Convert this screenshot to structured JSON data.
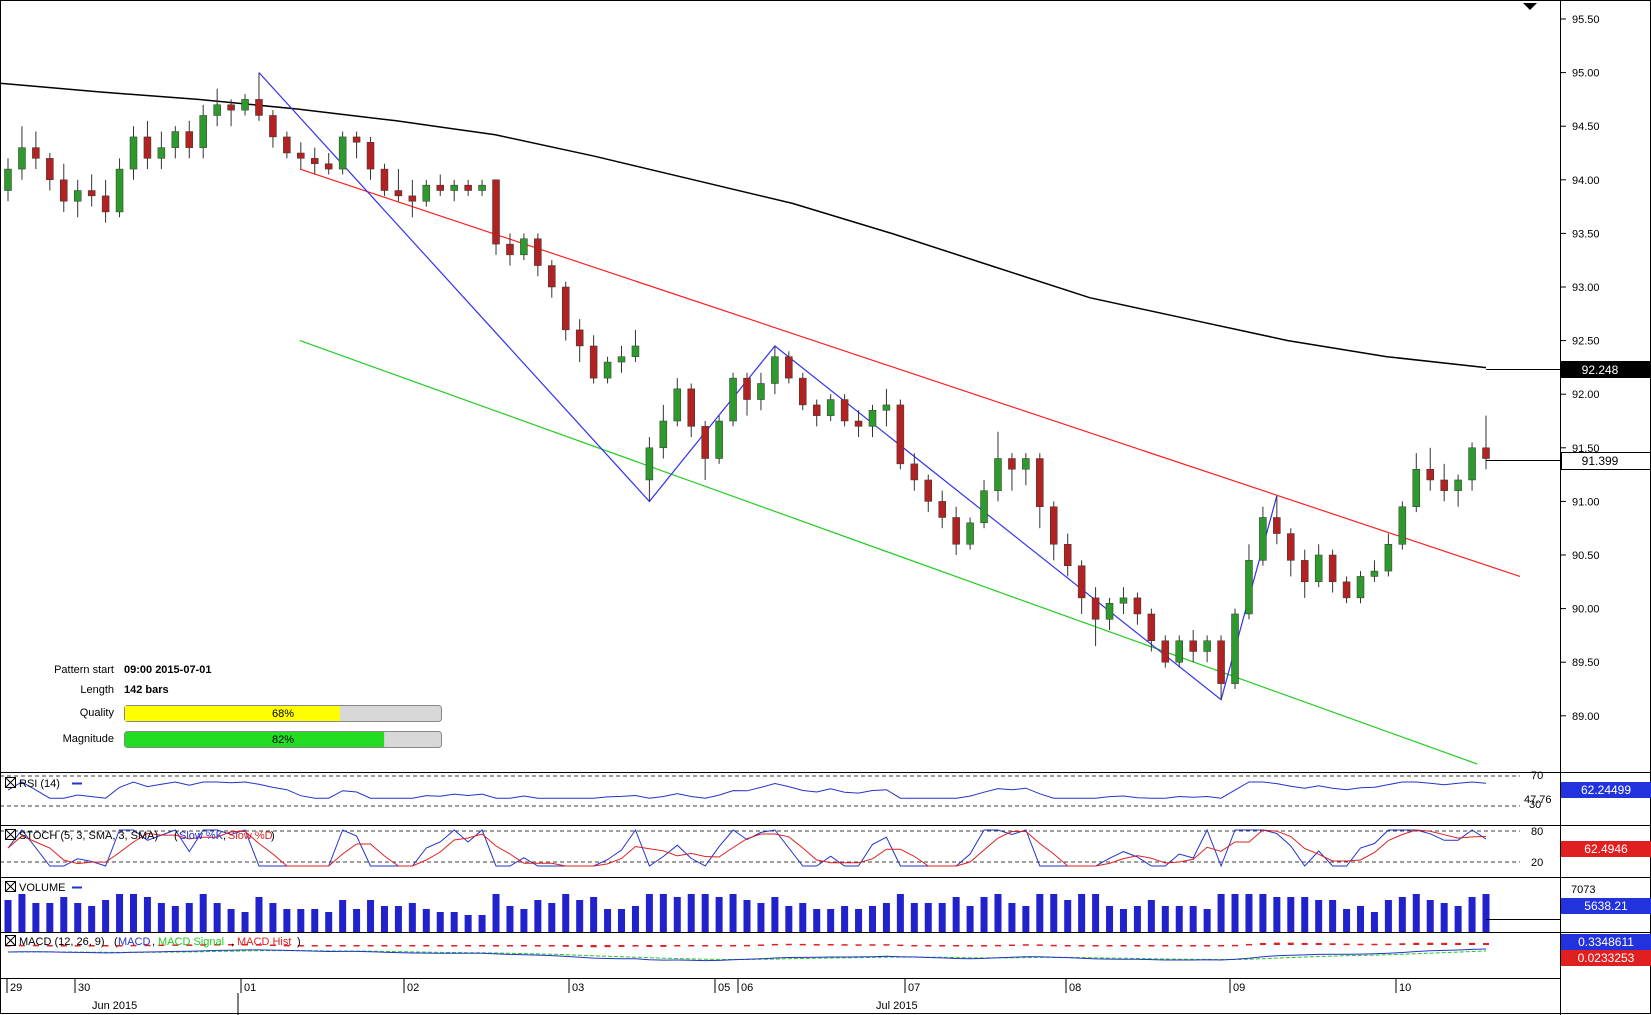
{
  "chart_data": {
    "type": "candlestick",
    "instrument_note": "",
    "price_axis": {
      "ticks": [
        95.5,
        95.0,
        94.5,
        94.0,
        93.5,
        93.0,
        92.5,
        92.0,
        91.5,
        91.0,
        90.5,
        90.0,
        89.5,
        89.0
      ],
      "tick_labels": [
        "95.50",
        "95.00",
        "94.50",
        "94.00",
        "93.50",
        "93.00",
        "92.50",
        "92.00",
        "91.50",
        "91.00",
        "90.50",
        "90.00",
        "89.50",
        "89.00"
      ],
      "ylim": [
        88.4,
        95.6
      ]
    },
    "time_axis": {
      "day_labels": [
        "29",
        "30",
        "01",
        "02",
        "03",
        "05",
        "06",
        "07",
        "08",
        "09",
        "10"
      ],
      "month_labels": [
        "Jun 2015",
        "Jul 2015"
      ]
    },
    "moving_average": {
      "label": "92.248",
      "value": 92.248,
      "points": [
        94.9,
        94.82,
        94.75,
        94.66,
        94.55,
        94.42,
        94.22,
        94.0,
        93.78,
        93.5,
        93.2,
        92.9,
        92.7,
        92.5,
        92.35,
        92.248
      ]
    },
    "last_price": {
      "label": "91.399",
      "value": 91.399
    },
    "pattern": {
      "type": "descending channel",
      "start_label": "Pattern start",
      "start_value": "09:00 2015-07-01",
      "length_label": "Length",
      "length_value": "142 bars",
      "quality_label": "Quality",
      "quality_value": "68%",
      "quality": 0.68,
      "magnitude_label": "Magnitude",
      "magnitude_value": "82%",
      "magnitude": 0.82,
      "resistance_line": [
        [
          0.0,
          94.1
        ],
        [
          1.0,
          90.3
        ]
      ],
      "support_line": [
        [
          0.0,
          92.5
        ],
        [
          0.965,
          88.55
        ]
      ],
      "zigzag": [
        95.0,
        91.0,
        92.45,
        89.15,
        91.05
      ]
    },
    "candles_ohlc": [
      [
        93.9,
        94.2,
        93.8,
        94.1
      ],
      [
        94.1,
        94.5,
        94.0,
        94.3
      ],
      [
        94.3,
        94.45,
        94.1,
        94.2
      ],
      [
        94.2,
        94.25,
        93.9,
        94.0
      ],
      [
        94.0,
        94.15,
        93.7,
        93.8
      ],
      [
        93.8,
        94.0,
        93.65,
        93.9
      ],
      [
        93.9,
        94.05,
        93.75,
        93.85
      ],
      [
        93.85,
        94.0,
        93.6,
        93.7
      ],
      [
        93.7,
        94.2,
        93.65,
        94.1
      ],
      [
        94.1,
        94.5,
        94.0,
        94.4
      ],
      [
        94.4,
        94.55,
        94.1,
        94.2
      ],
      [
        94.2,
        94.45,
        94.1,
        94.3
      ],
      [
        94.3,
        94.5,
        94.2,
        94.45
      ],
      [
        94.45,
        94.55,
        94.2,
        94.3
      ],
      [
        94.3,
        94.7,
        94.2,
        94.6
      ],
      [
        94.6,
        94.85,
        94.5,
        94.7
      ],
      [
        94.7,
        94.75,
        94.5,
        94.65
      ],
      [
        94.65,
        94.8,
        94.6,
        94.75
      ],
      [
        94.75,
        95.0,
        94.55,
        94.6
      ],
      [
        94.6,
        94.65,
        94.3,
        94.4
      ],
      [
        94.4,
        94.45,
        94.2,
        94.25
      ],
      [
        94.25,
        94.35,
        94.1,
        94.2
      ],
      [
        94.2,
        94.3,
        94.05,
        94.15
      ],
      [
        94.15,
        94.25,
        94.05,
        94.1
      ],
      [
        94.1,
        94.45,
        94.05,
        94.4
      ],
      [
        94.4,
        94.45,
        94.2,
        94.35
      ],
      [
        94.35,
        94.4,
        94.0,
        94.1
      ],
      [
        94.1,
        94.15,
        93.85,
        93.9
      ],
      [
        93.9,
        94.1,
        93.8,
        93.85
      ],
      [
        93.85,
        94.0,
        93.65,
        93.8
      ],
      [
        93.8,
        94.0,
        93.75,
        93.95
      ],
      [
        93.95,
        94.05,
        93.85,
        93.9
      ],
      [
        93.9,
        94.0,
        93.8,
        93.95
      ],
      [
        93.95,
        94.0,
        93.85,
        93.9
      ],
      [
        93.9,
        94.0,
        93.85,
        93.95
      ],
      [
        94.0,
        94.0,
        93.3,
        93.4
      ],
      [
        93.4,
        93.5,
        93.2,
        93.3
      ],
      [
        93.3,
        93.5,
        93.25,
        93.45
      ],
      [
        93.45,
        93.5,
        93.1,
        93.2
      ],
      [
        93.2,
        93.25,
        92.9,
        93.0
      ],
      [
        93.0,
        93.05,
        92.5,
        92.6
      ],
      [
        92.6,
        92.7,
        92.3,
        92.45
      ],
      [
        92.45,
        92.55,
        92.1,
        92.15
      ],
      [
        92.15,
        92.35,
        92.1,
        92.3
      ],
      [
        92.3,
        92.45,
        92.2,
        92.35
      ],
      [
        92.35,
        92.6,
        92.3,
        92.45
      ],
      [
        91.2,
        91.6,
        91.0,
        91.5
      ],
      [
        91.5,
        91.9,
        91.4,
        91.75
      ],
      [
        91.75,
        92.15,
        91.7,
        92.05
      ],
      [
        92.05,
        92.1,
        91.6,
        91.7
      ],
      [
        91.7,
        91.75,
        91.2,
        91.4
      ],
      [
        91.4,
        91.8,
        91.35,
        91.75
      ],
      [
        91.75,
        92.2,
        91.7,
        92.15
      ],
      [
        92.15,
        92.2,
        91.8,
        91.95
      ],
      [
        91.95,
        92.2,
        91.85,
        92.1
      ],
      [
        92.1,
        92.45,
        92.0,
        92.35
      ],
      [
        92.35,
        92.4,
        92.1,
        92.15
      ],
      [
        92.15,
        92.2,
        91.85,
        91.9
      ],
      [
        91.9,
        91.95,
        91.7,
        91.8
      ],
      [
        91.8,
        92.0,
        91.75,
        91.95
      ],
      [
        91.95,
        92.0,
        91.7,
        91.75
      ],
      [
        91.75,
        91.85,
        91.6,
        91.7
      ],
      [
        91.7,
        91.9,
        91.6,
        91.85
      ],
      [
        91.85,
        92.05,
        91.7,
        91.9
      ],
      [
        91.9,
        91.95,
        91.3,
        91.35
      ],
      [
        91.35,
        91.45,
        91.1,
        91.2
      ],
      [
        91.2,
        91.25,
        90.9,
        91.0
      ],
      [
        91.0,
        91.1,
        90.75,
        90.85
      ],
      [
        90.85,
        90.95,
        90.5,
        90.6
      ],
      [
        90.6,
        90.85,
        90.55,
        90.8
      ],
      [
        90.8,
        91.2,
        90.75,
        91.1
      ],
      [
        91.1,
        91.65,
        91.0,
        91.4
      ],
      [
        91.4,
        91.45,
        91.1,
        91.3
      ],
      [
        91.3,
        91.45,
        91.15,
        91.4
      ],
      [
        91.4,
        91.45,
        90.75,
        90.95
      ],
      [
        90.95,
        91.0,
        90.45,
        90.6
      ],
      [
        90.6,
        90.7,
        90.3,
        90.4
      ],
      [
        90.4,
        90.45,
        89.95,
        90.1
      ],
      [
        90.1,
        90.2,
        89.65,
        89.9
      ],
      [
        89.9,
        90.1,
        89.8,
        90.05
      ],
      [
        90.05,
        90.2,
        89.95,
        90.1
      ],
      [
        90.1,
        90.15,
        89.85,
        89.95
      ],
      [
        89.95,
        90.0,
        89.6,
        89.7
      ],
      [
        89.7,
        89.75,
        89.45,
        89.5
      ],
      [
        89.5,
        89.75,
        89.45,
        89.7
      ],
      [
        89.7,
        89.8,
        89.5,
        89.6
      ],
      [
        89.6,
        89.75,
        89.5,
        89.7
      ],
      [
        89.7,
        89.75,
        89.15,
        89.3
      ],
      [
        89.3,
        90.0,
        89.25,
        89.95
      ],
      [
        89.95,
        90.6,
        89.9,
        90.45
      ],
      [
        90.45,
        90.95,
        90.4,
        90.85
      ],
      [
        90.85,
        91.05,
        90.6,
        90.7
      ],
      [
        90.7,
        90.75,
        90.3,
        90.45
      ],
      [
        90.45,
        90.55,
        90.1,
        90.25
      ],
      [
        90.25,
        90.6,
        90.2,
        90.5
      ],
      [
        90.5,
        90.55,
        90.15,
        90.25
      ],
      [
        90.25,
        90.3,
        90.05,
        90.1
      ],
      [
        90.1,
        90.35,
        90.05,
        90.3
      ],
      [
        90.3,
        90.45,
        90.25,
        90.35
      ],
      [
        90.35,
        90.7,
        90.3,
        90.6
      ],
      [
        90.6,
        91.0,
        90.55,
        90.95
      ],
      [
        90.95,
        91.45,
        90.9,
        91.3
      ],
      [
        91.3,
        91.5,
        91.1,
        91.2
      ],
      [
        91.2,
        91.35,
        91.0,
        91.1
      ],
      [
        91.1,
        91.25,
        90.95,
        91.2
      ],
      [
        91.2,
        91.55,
        91.1,
        91.5
      ],
      [
        91.5,
        91.8,
        91.3,
        91.4
      ]
    ],
    "indicators": [
      {
        "name": "RSI",
        "label": "RSI (14)",
        "value_label": "62.24499",
        "levels": [
          "70",
          "30"
        ],
        "mid_label": "47.76"
      },
      {
        "name": "STOCH",
        "label": "STOCH (5, 3, SMA, 3, SMA)",
        "legend": [
          "Slow %K",
          "Slow %D"
        ],
        "value_label": "62.4946",
        "levels": [
          "80",
          "20"
        ]
      },
      {
        "name": "VOLUME",
        "label": "VOLUME",
        "value_label": "5638.21",
        "top_label": "7073"
      },
      {
        "name": "MACD",
        "label": "MACD (12, 26, 9)",
        "legend": [
          "MACD",
          "MACD Signal",
          "MACD Hist"
        ],
        "value_labels": [
          "0.3348611",
          "0.0233253"
        ]
      }
    ],
    "colors": {
      "bull": "#2e9a2e",
      "bear": "#b22222",
      "ma": "#000000",
      "resistance": "#ff2020",
      "support": "#22cc22",
      "zigzag": "#3333ee",
      "quality_bar": "#ffff00",
      "magnitude_bar": "#22dd22",
      "rsi": "#2233cc",
      "stoch_k": "#2233cc",
      "stoch_d": "#e02020",
      "volume": "#2222cc",
      "macd": "#2233cc",
      "macd_signal": "#22cc22",
      "macd_hist": "#e02020"
    }
  }
}
